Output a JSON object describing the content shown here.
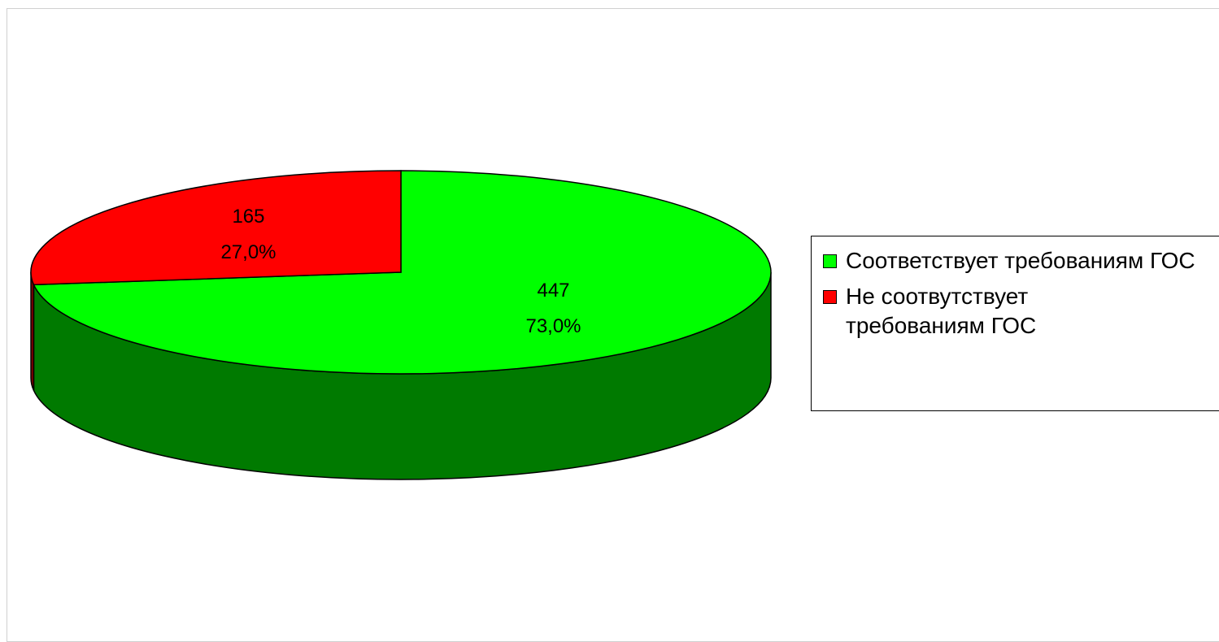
{
  "chart_data": {
    "type": "pie3d",
    "categories": [
      "Соответствует требованиям ГОС",
      "Не соотвутствует требованиям ГОС"
    ],
    "values": [
      447,
      165
    ],
    "percent_labels": [
      "73,0%",
      "27,0%"
    ],
    "colors": [
      "#00ff00",
      "#ff0000"
    ],
    "side_colors": [
      "#007a00",
      "#800000"
    ],
    "legend": "right"
  }
}
